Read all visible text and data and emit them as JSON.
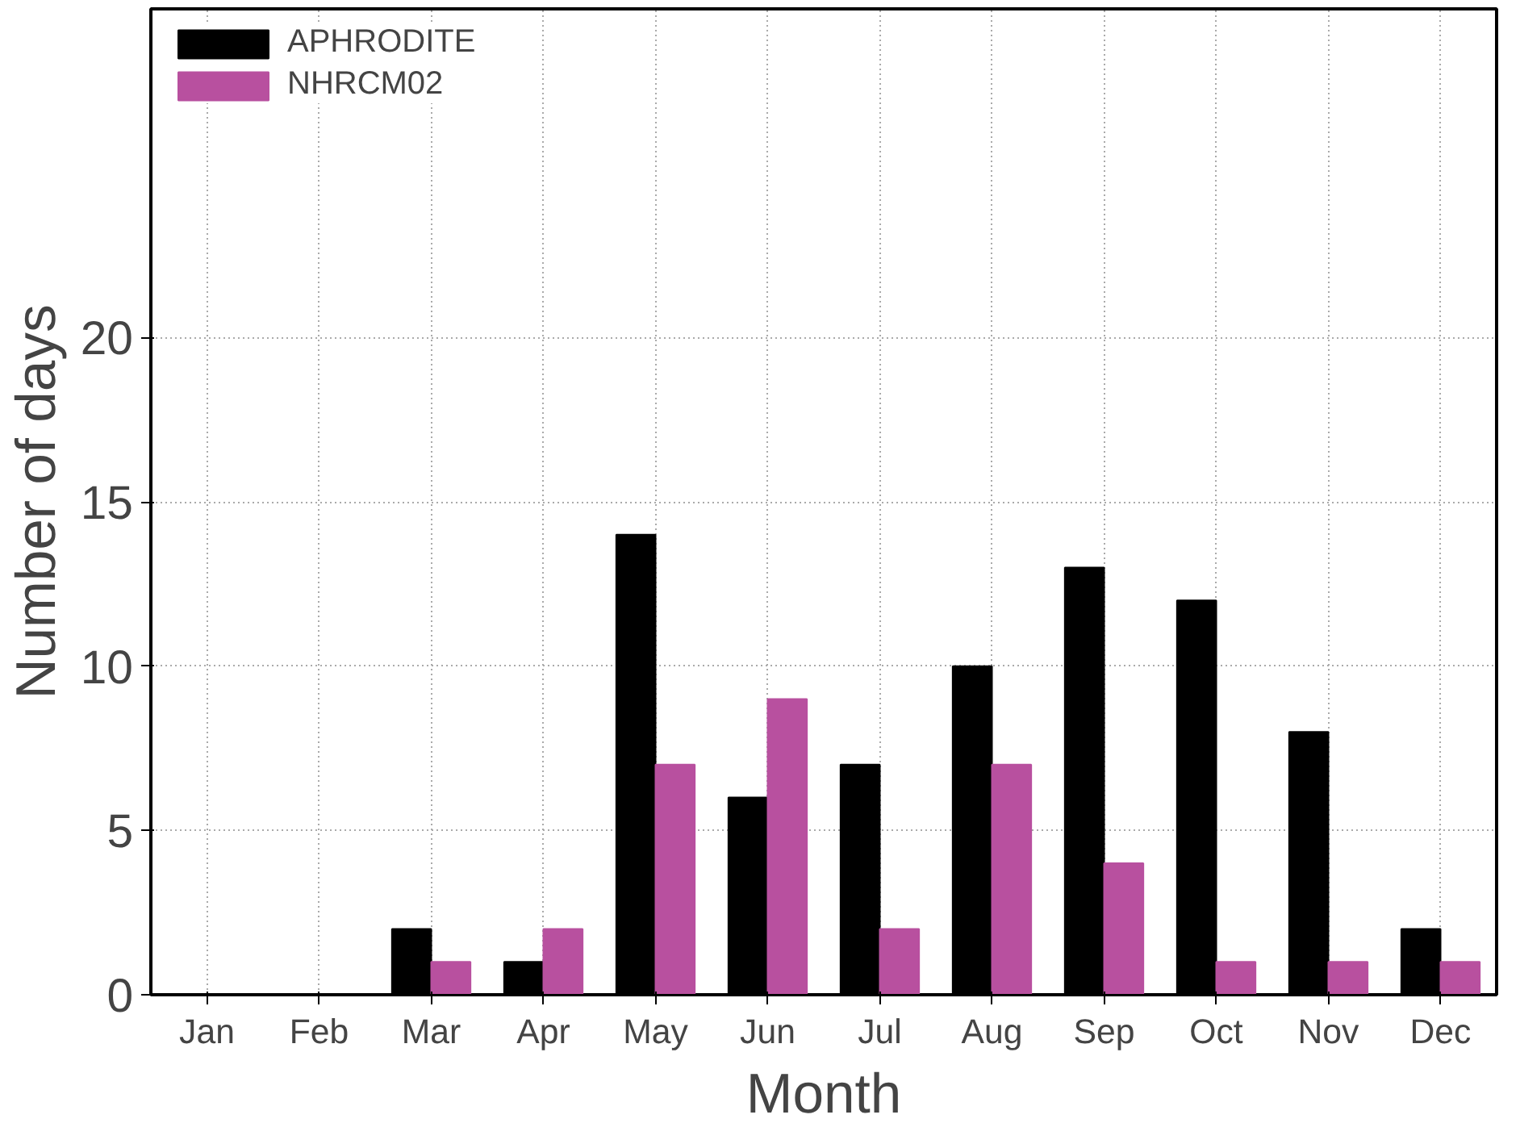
{
  "chart_data": {
    "type": "bar",
    "xlabel": "Month",
    "ylabel": "Number of days",
    "categories": [
      "Jan",
      "Feb",
      "Mar",
      "Apr",
      "May",
      "Jun",
      "Jul",
      "Aug",
      "Sep",
      "Oct",
      "Nov",
      "Dec"
    ],
    "series": [
      {
        "name": "APHRODITE",
        "color": "#000000",
        "values": [
          0,
          0,
          2,
          1,
          14,
          6,
          7,
          10,
          13,
          12,
          8,
          2
        ]
      },
      {
        "name": "NHRCM02",
        "color": "#b8509f",
        "values": [
          0,
          0,
          1,
          2,
          7,
          9,
          2,
          7,
          4,
          1,
          1,
          1
        ]
      }
    ],
    "ylim": [
      0,
      30
    ],
    "yticks": [
      0,
      5,
      10,
      15,
      20
    ],
    "grid": true,
    "legend": "top left"
  }
}
